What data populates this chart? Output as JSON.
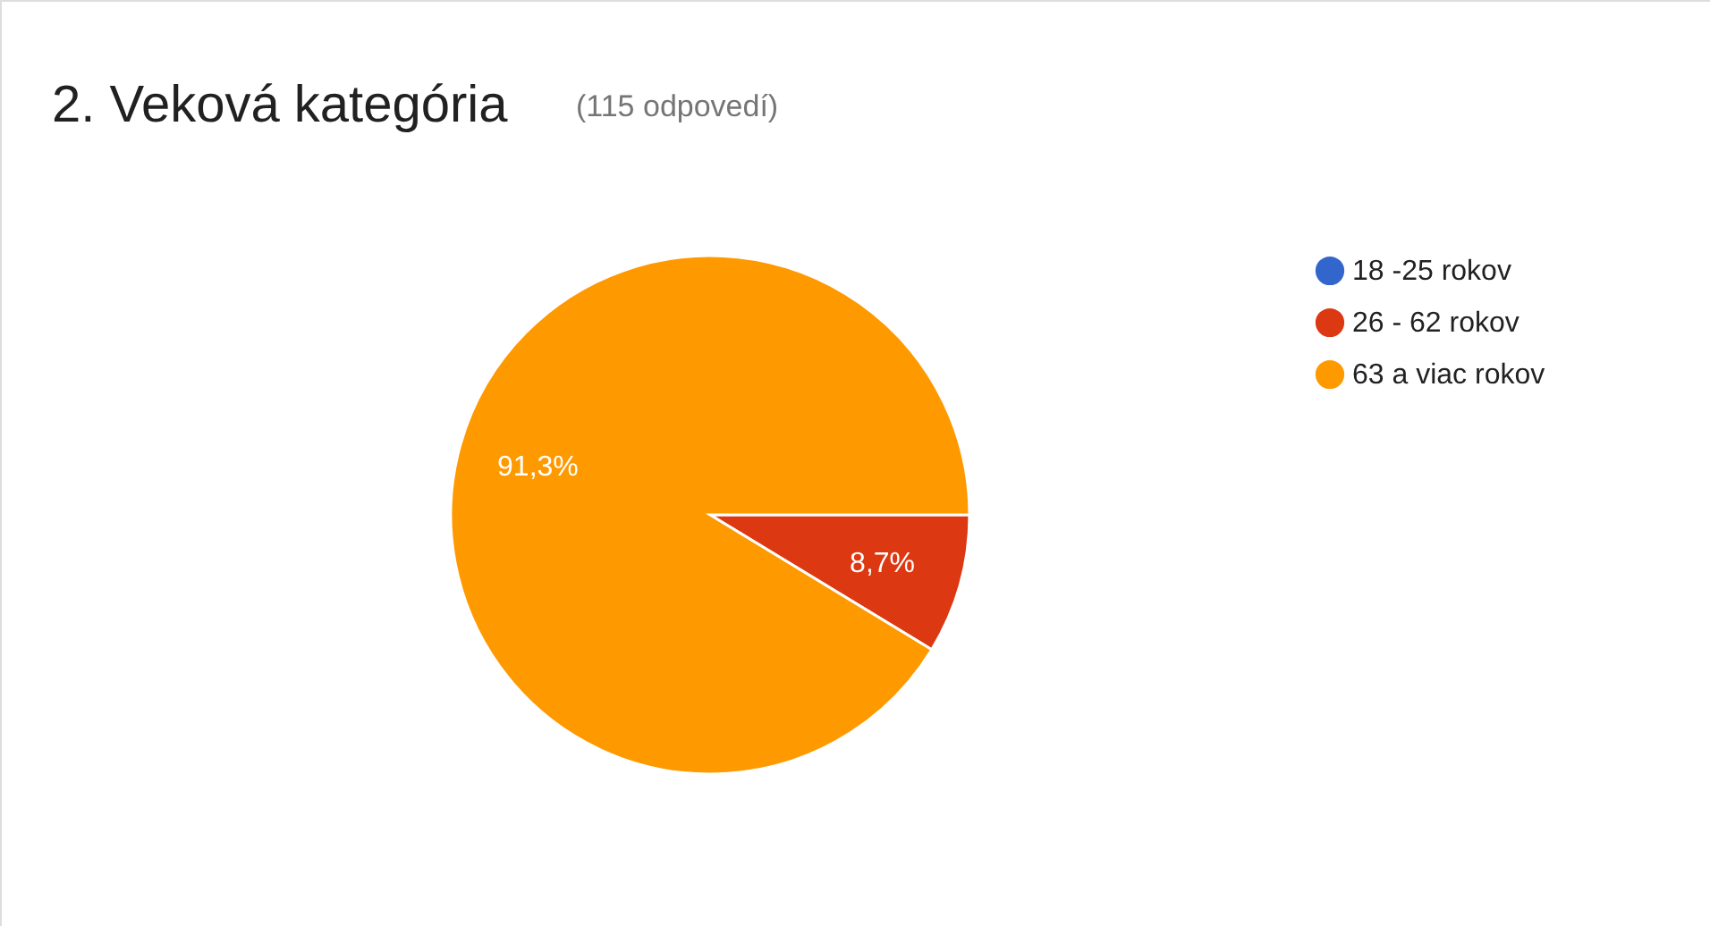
{
  "chart_data": {
    "type": "pie",
    "title": "2. Veková kategória",
    "subtitle": "(115 odpovedí)",
    "categories": [
      "18 -25 rokov",
      "26 - 62 rokov",
      "63 a viac rokov"
    ],
    "values": [
      0,
      8.7,
      91.3
    ],
    "colors": [
      "#3366cc",
      "#dc3912",
      "#ff9900"
    ],
    "value_labels": [
      null,
      "8,7%",
      "91,3%"
    ],
    "legend": "right"
  }
}
